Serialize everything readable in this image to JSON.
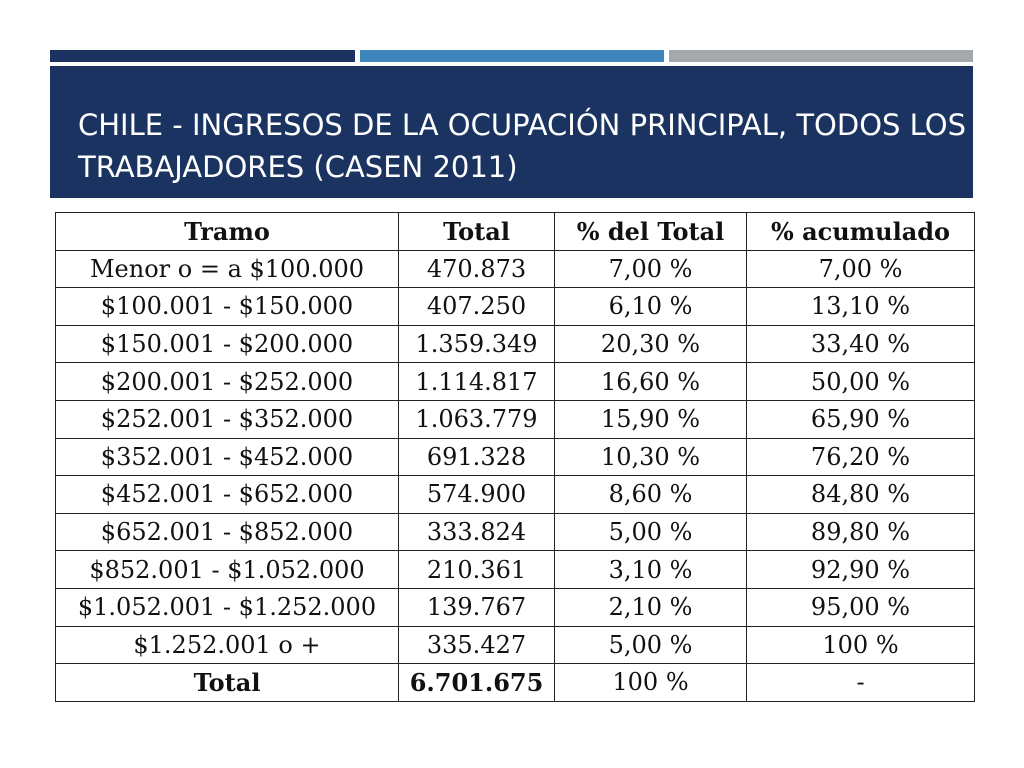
{
  "slide": {
    "title": "CHILE - INGRESOS DE LA OCUPACIÓN PRINCIPAL, TODOS LOS TRABAJADORES (CASEN 2011)",
    "accent_colors": [
      "#1b3361",
      "#3d86bd",
      "#a3a8ad"
    ],
    "title_band_color": "#1b3361"
  },
  "table": {
    "headers": [
      "Tramo",
      "Total",
      "% del Total",
      "% acumulado"
    ],
    "rows": [
      [
        "Menor o = a $100.000",
        "470.873",
        "7,00 %",
        "7,00 %"
      ],
      [
        "$100.001 - $150.000",
        "407.250",
        "6,10 %",
        "13,10 %"
      ],
      [
        "$150.001 - $200.000",
        "1.359.349",
        "20,30 %",
        "33,40 %"
      ],
      [
        "$200.001 - $252.000",
        "1.114.817",
        "16,60 %",
        "50,00 %"
      ],
      [
        "$252.001 - $352.000",
        "1.063.779",
        "15,90 %",
        "65,90 %"
      ],
      [
        "$352.001 - $452.000",
        "691.328",
        "10,30 %",
        "76,20 %"
      ],
      [
        "$452.001 - $652.000",
        "574.900",
        "8,60 %",
        "84,80 %"
      ],
      [
        "$652.001 - $852.000",
        "333.824",
        "5,00 %",
        "89,80 %"
      ],
      [
        "$852.001 - $1.052.000",
        "210.361",
        "3,10 %",
        "92,90 %"
      ],
      [
        "$1.052.001 - $1.252.000",
        "139.767",
        "2,10 %",
        "95,00 %"
      ],
      [
        "$1.252.001 o +",
        "335.427",
        "5,00 %",
        "100 %"
      ]
    ],
    "total_row": [
      "Total",
      "6.701.675",
      "100 %",
      "-"
    ]
  }
}
